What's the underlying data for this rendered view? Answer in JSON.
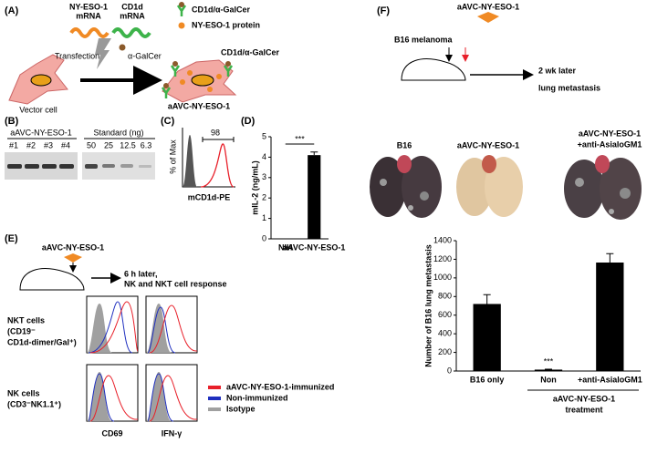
{
  "panels": {
    "A": {
      "label": "(A)",
      "ny_eso_mrna": [
        "NY-ESO-1",
        "mRNA"
      ],
      "cd1d_mrna": [
        "CD1d",
        "mRNA"
      ],
      "legend_cd1d": "CD1d/α-GalCer",
      "legend_protein": "NY-ESO-1 protein",
      "transfection": "Transfection",
      "galcer": "α-GalCer",
      "cell_cd1d": "CD1d/α-GalCer",
      "vector_cell": "Vector cell",
      "product": "aAVC-NY-ESO-1"
    },
    "B": {
      "label": "(B)",
      "group1": "aAVC-NY-ESO-1",
      "lanes1": [
        "#1",
        "#2",
        "#3",
        "#4"
      ],
      "group2": "Standard (ng)",
      "lanes2": [
        "50",
        "25",
        "12.5",
        "6.3"
      ]
    },
    "C": {
      "label": "(C)",
      "ylabel": "% of Max",
      "xlabel": "mCD1d-PE",
      "gate": "98"
    },
    "D": {
      "label": "(D)"
    },
    "E": {
      "label": "(E)",
      "vaccine": "aAVC-NY-ESO-1",
      "step": [
        "6 h later,",
        "NK and NKT cell response"
      ],
      "row1": [
        "NKT cells",
        "(CD19⁻",
        "CD1d-dimer/Gal⁺)"
      ],
      "row2": [
        "NK cells",
        "(CD3⁻NK1.1⁺)"
      ],
      "legend": [
        {
          "name": "aAVC-NY-ESO-1-immunized",
          "color": "#e8202a"
        },
        {
          "name": "Non-immunized",
          "color": "#1f2fbf"
        },
        {
          "name": "Isotype",
          "color": "#a0a0a0"
        }
      ],
      "xlabels": [
        "CD69",
        "IFN-γ"
      ]
    },
    "F": {
      "label": "(F)",
      "vaccine": "aAVC-NY-ESO-1",
      "tumor": "B16 melanoma",
      "outcome": [
        "2 wk later",
        "lung metastasis"
      ],
      "images": [
        "B16",
        "aAVC-NY-ESO-1"
      ],
      "image3": [
        "aAVC-NY-ESO-1",
        "+anti-AsialoGM1"
      ],
      "group": [
        "aAVC-NY-ESO-1",
        "treatment"
      ]
    }
  },
  "chart_data": [
    {
      "type": "bar",
      "ylabel": "mIL-2 (ng/mL)",
      "categories": [
        "NIH",
        "aAVC-NY-ESO-1"
      ],
      "values": [
        0,
        4.1
      ],
      "errors": [
        0,
        0.15
      ],
      "color": "#000000",
      "ylim": [
        0,
        5
      ],
      "yticks": [
        0,
        1,
        2,
        3,
        4,
        5
      ],
      "significance": "***"
    },
    {
      "type": "bar",
      "ylabel": "Number of B16 lung metastasis",
      "categories": [
        "B16 only",
        "Non",
        "+anti-AsialoGM1"
      ],
      "values": [
        720,
        15,
        1165
      ],
      "errors": [
        100,
        5,
        95
      ],
      "color": "#000000",
      "ylim": [
        0,
        1400
      ],
      "yticks": [
        0,
        200,
        400,
        600,
        800,
        1000,
        1200,
        1400
      ],
      "significance": "***"
    }
  ]
}
